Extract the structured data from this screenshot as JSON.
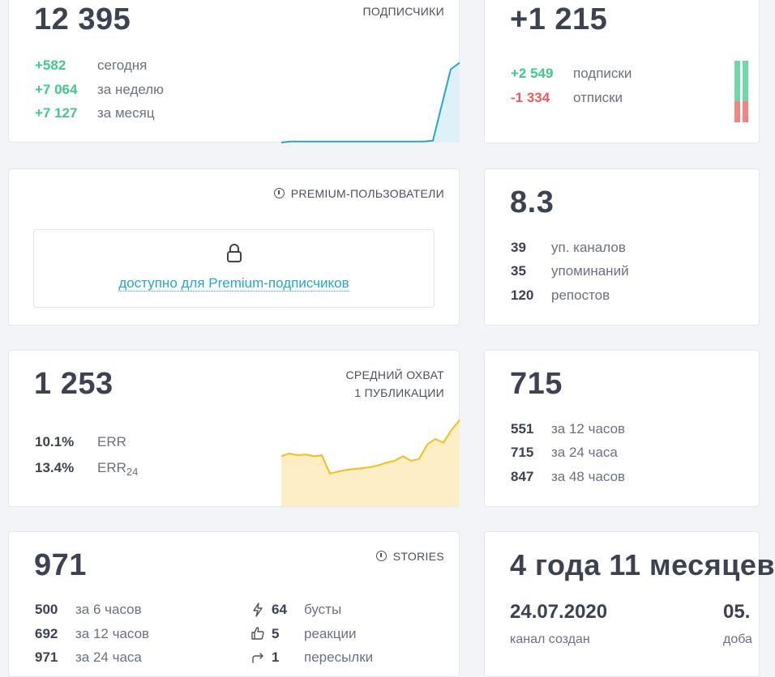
{
  "subscribers": {
    "total": "12 395",
    "tag": "ПОДПИСЧИКИ",
    "rows": [
      {
        "value": "+582",
        "label": "сегодня"
      },
      {
        "value": "+7 064",
        "label": "за неделю"
      },
      {
        "value": "+7 127",
        "label": "за месяц"
      }
    ]
  },
  "net_change": {
    "total": "+1 215",
    "rows": [
      {
        "value": "+2 549",
        "label": "подписки"
      },
      {
        "value": "-1 334",
        "label": "отписки"
      }
    ]
  },
  "premium": {
    "tag": "PREMIUM-ПОЛЬЗОВАТЕЛИ",
    "link": "доступно для Premium-подписчиков",
    "lock_icon": "lock-icon"
  },
  "citation": {
    "index": "8.3",
    "rows": [
      {
        "value": "39",
        "label": "уп. каналов"
      },
      {
        "value": "35",
        "label": "упоминаний"
      },
      {
        "value": "120",
        "label": "репостов"
      }
    ]
  },
  "reach": {
    "total": "1 253",
    "tag_line1": "СРЕДНИЙ ОХВАТ",
    "tag_line2": "1 ПУБЛИКАЦИИ",
    "err_value": "10.1%",
    "err_label": "ERR",
    "err24_value": "13.4%",
    "err24_label": "ERR",
    "err24_sub": "24"
  },
  "views": {
    "total": "715",
    "rows": [
      {
        "value": "551",
        "label": "за 12 часов"
      },
      {
        "value": "715",
        "label": "за 24 часа"
      },
      {
        "value": "847",
        "label": "за 48 часов"
      }
    ]
  },
  "stories": {
    "total": "971",
    "tag": "STORIES",
    "rows": [
      {
        "value": "500",
        "label": "за 6 часов"
      },
      {
        "value": "692",
        "label": "за 12 часов"
      },
      {
        "value": "971",
        "label": "за 24 часа"
      }
    ],
    "stats": [
      {
        "icon": "lightning-icon",
        "value": "64",
        "label": "бусты"
      },
      {
        "icon": "thumbs-up-icon",
        "value": "5",
        "label": "реакции"
      },
      {
        "icon": "share-icon",
        "value": "1",
        "label": "пересылки"
      }
    ]
  },
  "age": {
    "title": "4 года 11 месяцев",
    "created_date": "24.07.2020",
    "created_label": "канал создан",
    "added_date": "05.",
    "added_label": "доба"
  },
  "colors": {
    "accent_blue": "#27a7c7",
    "green": "#3fca8b",
    "red": "#ef5b5b",
    "yellow": "#f5bd1f"
  },
  "chart_data": [
    {
      "type": "area",
      "series": [
        {
          "values": [
            0,
            1,
            1,
            1,
            1,
            1,
            1,
            1,
            1,
            1,
            1,
            1,
            1,
            1,
            1,
            1,
            1,
            2,
            40,
            78,
            85
          ]
        }
      ]
    },
    {
      "type": "area",
      "series": [
        {
          "values": [
            55,
            58,
            56,
            57,
            55,
            56,
            36,
            38,
            40,
            41,
            42,
            43,
            45,
            48,
            50,
            55,
            50,
            52,
            68,
            74,
            70,
            84,
            95
          ]
        }
      ]
    },
    {
      "type": "bar",
      "series": [
        {
          "name": "подписки",
          "values": [
            2549
          ]
        },
        {
          "name": "отписки",
          "values": [
            -1334
          ]
        }
      ]
    }
  ]
}
